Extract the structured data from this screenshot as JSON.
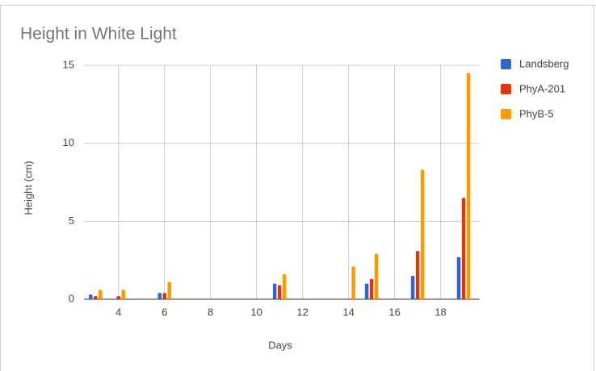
{
  "chart_data": {
    "type": "bar",
    "title": "Height in White Light",
    "x_label": "Days",
    "y_label": "Height (cm)",
    "x": [
      3,
      4,
      6,
      11,
      14,
      15,
      17,
      19
    ],
    "series": [
      {
        "name": "Landsberg",
        "color": "#3366cc",
        "values": [
          0.3,
          null,
          0.4,
          1.0,
          null,
          1.0,
          1.5,
          2.7
        ]
      },
      {
        "name": "PhyA-201",
        "color": "#dc3912",
        "values": [
          0.2,
          0.2,
          0.4,
          0.9,
          null,
          1.3,
          3.1,
          6.5
        ]
      },
      {
        "name": "PhyB-5",
        "color": "#ff9900",
        "values": [
          0.6,
          0.6,
          1.1,
          1.6,
          2.1,
          2.9,
          8.3,
          14.5
        ]
      }
    ],
    "xlim": [
      2.5,
      19.7
    ],
    "xticks": [
      4,
      6,
      8,
      10,
      12,
      14,
      16,
      18
    ],
    "ylim": [
      0,
      15
    ],
    "yticks": [
      0,
      5,
      10,
      15
    ],
    "grid": true,
    "legend": "right"
  }
}
